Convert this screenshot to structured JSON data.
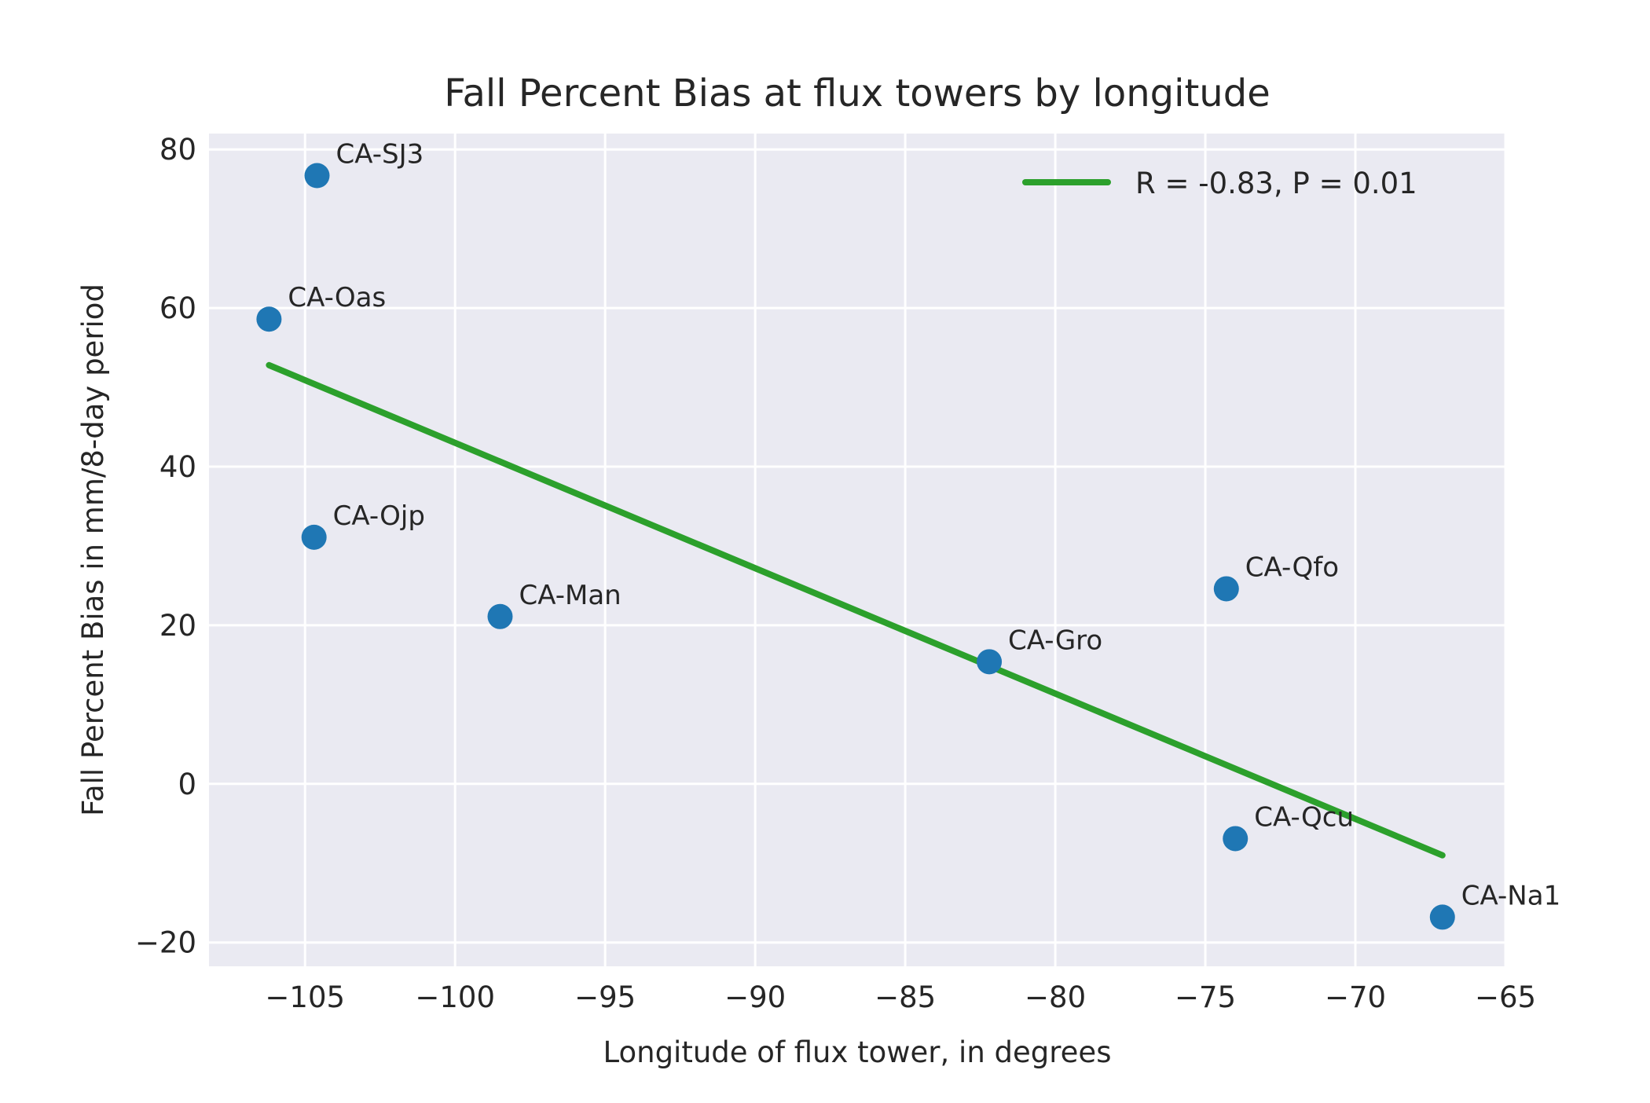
{
  "chart_data": {
    "type": "scatter",
    "title": "Fall Percent Bias at flux towers by longitude",
    "xlabel": "Longitude of flux tower, in degrees",
    "ylabel": "Fall Percent Bias in mm/8-day period",
    "xlim": [
      -108.2,
      -65.0
    ],
    "ylim": [
      -23,
      82
    ],
    "xticks": [
      -105,
      -100,
      -95,
      -90,
      -85,
      -80,
      -75,
      -70,
      -65
    ],
    "xtick_labels": [
      "−105",
      "−100",
      "−95",
      "−90",
      "−85",
      "−80",
      "−75",
      "−70",
      "−65"
    ],
    "yticks": [
      -20,
      0,
      20,
      40,
      60,
      80
    ],
    "ytick_labels": [
      "−20",
      "0",
      "20",
      "40",
      "60",
      "80"
    ],
    "grid": true,
    "background": "#eaeaf2",
    "point_color": "#1f77b4",
    "line_color": "#2ca02c",
    "legend_position": "top-right",
    "points": [
      {
        "label": "CA-SJ3",
        "x": -104.6,
        "y": 76.7
      },
      {
        "label": "CA-Oas",
        "x": -106.2,
        "y": 58.6
      },
      {
        "label": "CA-Ojp",
        "x": -104.7,
        "y": 31.1
      },
      {
        "label": "CA-Man",
        "x": -98.5,
        "y": 21.1
      },
      {
        "label": "CA-Gro",
        "x": -82.2,
        "y": 15.4
      },
      {
        "label": "CA-Qfo",
        "x": -74.3,
        "y": 24.6
      },
      {
        "label": "CA-Qcu",
        "x": -74.0,
        "y": -6.9
      },
      {
        "label": "CA-Na1",
        "x": -67.1,
        "y": -16.8
      }
    ],
    "fit_line": {
      "name": "R = -0.83, P = 0.01",
      "x": [
        -106.2,
        -67.1
      ],
      "y": [
        52.8,
        -9.0
      ]
    }
  }
}
